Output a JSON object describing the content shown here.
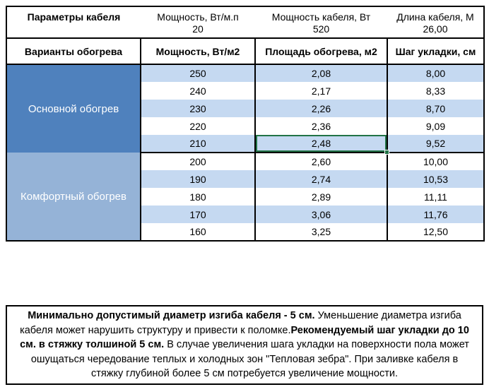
{
  "params": {
    "title": "Параметры кабеля",
    "items": [
      {
        "label": "Мощность, Вт/м.п",
        "value": "20"
      },
      {
        "label": "Мощность кабеля, Вт",
        "value": "520"
      },
      {
        "label": "Длина кабеля, М",
        "value": "26,00"
      }
    ]
  },
  "heating_table": {
    "headers": [
      "Варианты обогрева",
      "Мощность, Вт/м2",
      "Площадь обогрева, м2",
      "Шаг укладки, см"
    ],
    "groups": [
      {
        "label": "Основной обогрев",
        "style": "main",
        "rows": [
          {
            "power": "250",
            "area": "2,08",
            "step": "8,00",
            "shaded": true
          },
          {
            "power": "240",
            "area": "2,17",
            "step": "8,33",
            "shaded": false
          },
          {
            "power": "230",
            "area": "2,26",
            "step": "8,70",
            "shaded": true
          },
          {
            "power": "220",
            "area": "2,36",
            "step": "9,09",
            "shaded": false
          },
          {
            "power": "210",
            "area": "2,48",
            "step": "9,52",
            "shaded": true,
            "selected_column": "area"
          }
        ]
      },
      {
        "label": "Комфортный обогрев",
        "style": "comfort",
        "rows": [
          {
            "power": "200",
            "area": "2,60",
            "step": "10,00",
            "shaded": false
          },
          {
            "power": "190",
            "area": "2,74",
            "step": "10,53",
            "shaded": true
          },
          {
            "power": "180",
            "area": "2,89",
            "step": "11,11",
            "shaded": false
          },
          {
            "power": "170",
            "area": "3,06",
            "step": "11,76",
            "shaded": true
          },
          {
            "power": "160",
            "area": "3,25",
            "step": "12,50",
            "shaded": false
          }
        ]
      }
    ],
    "selected_cell": {
      "row_power": "210",
      "column": "Площадь обогрева, м2",
      "value": "2,48"
    }
  },
  "note": {
    "segments": [
      {
        "text": "Минимально допустимый диаметр изгиба кабеля - 5 см.",
        "bold": true
      },
      {
        "text": "  Уменьшение диаметра изгиба кабеля может нарушить структуру и привести к поломке.",
        "bold": false
      },
      {
        "text": "Рекомендуемый шаг укладки до 10 см. в стяжку толшиной 5 см.",
        "bold": true
      },
      {
        "text": " В  случае увеличения шага укладки на поверхности пола может ошущаться чередование теплых и холодных зон \"Тепловая зебра\". При заливке кабеля в стяжку глубиной более 5 см потребуется увеличение мощности.",
        "bold": false
      }
    ]
  },
  "colors": {
    "group_main": "#4f81bd",
    "group_comfort": "#95b3d7",
    "row_shade": "#c5d9f1",
    "selection": "#217346",
    "border": "#000000"
  }
}
